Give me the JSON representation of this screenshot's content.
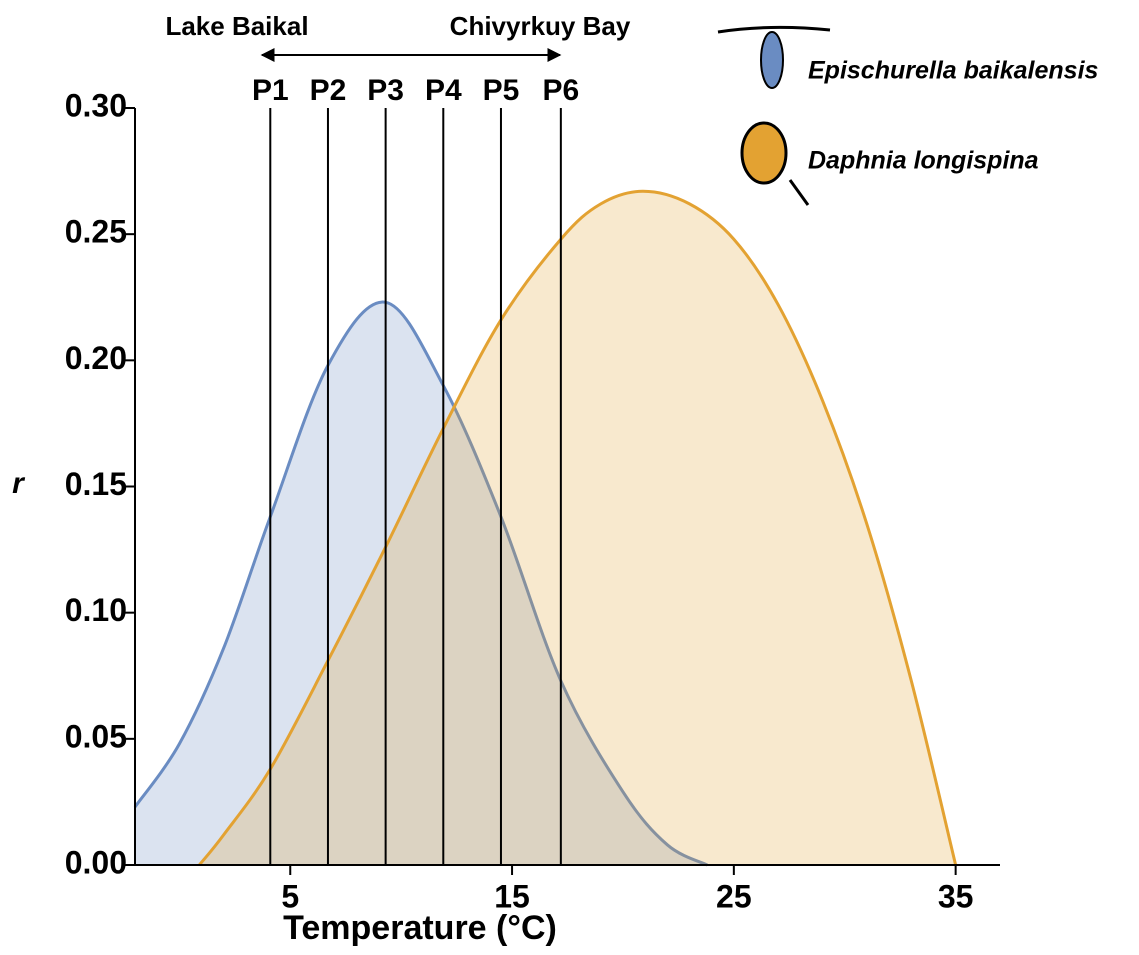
{
  "chart_data": {
    "type": "area",
    "x_label": "Temperature (°C)",
    "y_label": "r",
    "xlim": [
      -2,
      37
    ],
    "ylim": [
      0,
      0.3
    ],
    "xticks": [
      5,
      15,
      25,
      35
    ],
    "yticks": [
      {
        "value": 0,
        "label": "0.00"
      },
      {
        "value": 0.05,
        "label": "0.05"
      },
      {
        "value": 0.1,
        "label": "0.10"
      },
      {
        "value": 0.15,
        "label": "0.15"
      },
      {
        "value": 0.2,
        "label": "0.20"
      },
      {
        "value": 0.25,
        "label": "0.25"
      },
      {
        "value": 0.3,
        "label": "0.30"
      }
    ],
    "series": [
      {
        "name": "Epischurella baikalensis",
        "color": "#6a8cc2",
        "x": [
          -2,
          0,
          2,
          4.1,
          6.7,
          9.3,
          11.9,
          14.5,
          17.2,
          20,
          22,
          23.8
        ],
        "values": [
          0.023,
          0.048,
          0.086,
          0.138,
          0.198,
          0.223,
          0.19,
          0.138,
          0.073,
          0.029,
          0.008,
          0
        ]
      },
      {
        "name": "Daphnia longispina",
        "color": "#e3a232",
        "x": [
          0.9,
          2,
          4.1,
          6.7,
          9.3,
          11.9,
          14.5,
          17.2,
          19,
          20.9,
          23,
          25,
          27,
          29,
          31,
          33,
          35
        ],
        "values": [
          0,
          0.012,
          0.038,
          0.081,
          0.126,
          0.173,
          0.216,
          0.248,
          0.262,
          0.267,
          0.262,
          0.248,
          0.222,
          0.184,
          0.135,
          0.073,
          0
        ]
      }
    ],
    "reference_lines": [
      {
        "label": "P1",
        "x": 4.1
      },
      {
        "label": "P2",
        "x": 6.7
      },
      {
        "label": "P3",
        "x": 9.3
      },
      {
        "label": "P4",
        "x": 11.9
      },
      {
        "label": "P5",
        "x": 14.5
      },
      {
        "label": "P6",
        "x": 17.2
      }
    ],
    "annotations": [
      "Lake Baikal",
      "Chivyrkuy Bay"
    ]
  }
}
